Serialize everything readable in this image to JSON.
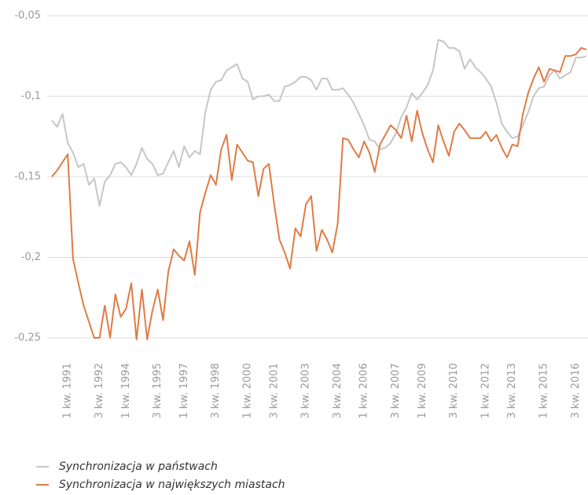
{
  "chart_data": {
    "type": "line",
    "categories": [
      null,
      null,
      null,
      "1 kw. 1991",
      null,
      null,
      null,
      null,
      null,
      "3 kw. 1992",
      null,
      null,
      null,
      null,
      "1 kw. 1994",
      null,
      null,
      null,
      null,
      null,
      "3 kw. 1995",
      null,
      null,
      null,
      null,
      "1 kw. 1997",
      null,
      null,
      null,
      null,
      null,
      "3 kw. 1998",
      null,
      null,
      null,
      null,
      null,
      "1 kw. 2000",
      null,
      null,
      null,
      null,
      "3 kw. 2001",
      null,
      null,
      null,
      null,
      null,
      "3 kw. 2003",
      null,
      null,
      null,
      null,
      null,
      "3 kw. 2004",
      null,
      null,
      null,
      null,
      "1 kw. 2006",
      null,
      null,
      null,
      null,
      null,
      "3 kw. 2007",
      null,
      null,
      null,
      null,
      "1 kw. 2009",
      null,
      null,
      null,
      null,
      null,
      "3 kw. 2010",
      null,
      null,
      null,
      null,
      null,
      "1 kw. 2012",
      null,
      null,
      null,
      null,
      "3 kw. 2013",
      null,
      null,
      null,
      null,
      null,
      "1 kw. 2015",
      null,
      null,
      null,
      null,
      null,
      "3 kw. 2016",
      null,
      null
    ],
    "series": [
      {
        "name": "Synchronizacja w państwach",
        "color": "#c6c6c6",
        "values": [
          -0.115,
          -0.119,
          -0.111,
          -0.129,
          -0.135,
          -0.144,
          -0.142,
          -0.155,
          -0.151,
          -0.168,
          -0.153,
          -0.149,
          -0.142,
          -0.141,
          -0.144,
          -0.149,
          -0.142,
          -0.132,
          -0.139,
          -0.142,
          -0.149,
          -0.148,
          -0.141,
          -0.134,
          -0.144,
          -0.131,
          -0.138,
          -0.134,
          -0.136,
          -0.11,
          -0.096,
          -0.091,
          -0.09,
          -0.084,
          -0.082,
          -0.08,
          -0.089,
          -0.091,
          -0.102,
          -0.1,
          -0.1,
          -0.099,
          -0.103,
          -0.103,
          -0.094,
          -0.093,
          -0.091,
          -0.088,
          -0.088,
          -0.09,
          -0.096,
          -0.089,
          -0.089,
          -0.096,
          -0.096,
          -0.095,
          -0.099,
          -0.104,
          -0.111,
          -0.118,
          -0.127,
          -0.128,
          -0.133,
          -0.132,
          -0.129,
          -0.123,
          -0.113,
          -0.107,
          -0.098,
          -0.102,
          -0.098,
          -0.093,
          -0.084,
          -0.065,
          -0.066,
          -0.07,
          -0.07,
          -0.072,
          -0.083,
          -0.077,
          -0.082,
          -0.085,
          -0.089,
          -0.094,
          -0.104,
          -0.117,
          -0.122,
          -0.126,
          -0.125,
          -0.118,
          -0.11,
          -0.1,
          -0.095,
          -0.094,
          -0.087,
          -0.084,
          -0.089,
          -0.087,
          -0.085,
          -0.076,
          -0.076,
          -0.075
        ]
      },
      {
        "name": "Synchronizacja w największych miastach",
        "color": "#e07b45",
        "values": [
          -0.15,
          -0.146,
          -0.141,
          -0.136,
          -0.201,
          -0.216,
          -0.23,
          -0.24,
          -0.25,
          -0.25,
          -0.23,
          -0.25,
          -0.223,
          -0.237,
          -0.232,
          -0.216,
          -0.251,
          -0.22,
          -0.251,
          -0.233,
          -0.22,
          -0.239,
          -0.209,
          -0.195,
          -0.199,
          -0.202,
          -0.19,
          -0.211,
          -0.172,
          -0.16,
          -0.149,
          -0.155,
          -0.133,
          -0.124,
          -0.152,
          -0.13,
          -0.135,
          -0.14,
          -0.141,
          -0.162,
          -0.145,
          -0.142,
          -0.167,
          -0.189,
          -0.197,
          -0.207,
          -0.182,
          -0.187,
          -0.167,
          -0.162,
          -0.196,
          -0.183,
          -0.189,
          -0.197,
          -0.179,
          -0.126,
          -0.127,
          -0.133,
          -0.138,
          -0.128,
          -0.135,
          -0.147,
          -0.13,
          -0.124,
          -0.118,
          -0.121,
          -0.126,
          -0.112,
          -0.128,
          -0.109,
          -0.123,
          -0.133,
          -0.141,
          -0.118,
          -0.128,
          -0.137,
          -0.122,
          -0.117,
          -0.121,
          -0.126,
          -0.126,
          -0.126,
          -0.122,
          -0.128,
          -0.124,
          -0.132,
          -0.138,
          -0.13,
          -0.131,
          -0.111,
          -0.098,
          -0.089,
          -0.082,
          -0.091,
          -0.083,
          -0.084,
          -0.085,
          -0.075,
          -0.075,
          -0.074,
          -0.07,
          -0.071
        ]
      }
    ],
    "ylim": [
      -0.25,
      -0.05
    ],
    "yticks": [
      {
        "value": -0.05,
        "label": "-0,05"
      },
      {
        "value": -0.1,
        "label": "-0,1"
      },
      {
        "value": -0.15,
        "label": "-0,15"
      },
      {
        "value": -0.2,
        "label": "-0,2"
      },
      {
        "value": -0.25,
        "label": "-0,25"
      }
    ],
    "grid": true
  }
}
